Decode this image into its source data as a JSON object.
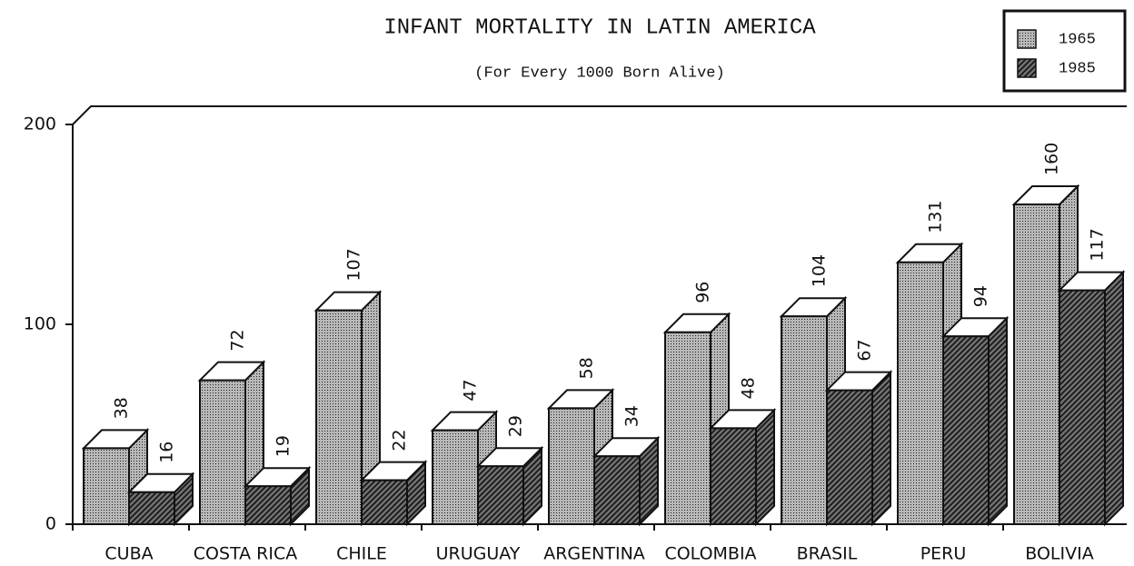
{
  "chart_data": {
    "type": "bar3d",
    "title": "INFANT MORTALITY IN LATIN AMERICA",
    "subtitle": "(For Every 1000 Born Alive)",
    "categories": [
      "CUBA",
      "COSTA RICA",
      "CHILE",
      "URUGUAY",
      "ARGENTINA",
      "COLOMBIA",
      "BRASIL",
      "PERU",
      "BOLIVIA"
    ],
    "series": [
      {
        "name": "1965",
        "color": "#b8b8b8",
        "values": [
          38,
          72,
          107,
          47,
          58,
          96,
          104,
          131,
          160
        ]
      },
      {
        "name": "1985",
        "color": "#707070",
        "values": [
          16,
          19,
          22,
          29,
          34,
          48,
          67,
          94,
          117
        ]
      }
    ],
    "ylim": [
      0,
      200
    ],
    "yticks": [
      0,
      100,
      200
    ],
    "legend": "top-right"
  }
}
